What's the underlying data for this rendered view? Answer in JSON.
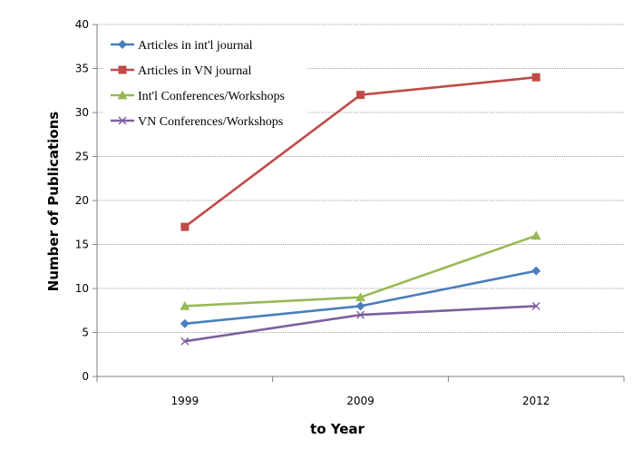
{
  "chart_data": {
    "type": "line",
    "categories": [
      "1999",
      "2009",
      "2012"
    ],
    "series": [
      {
        "name": "Articles in int'l journal",
        "values": [
          6,
          8,
          12
        ],
        "color": "#4a7ebb",
        "marker": "diamond"
      },
      {
        "name": "Articles in VN journal",
        "values": [
          17,
          32,
          34
        ],
        "color": "#be4b48",
        "marker": "square"
      },
      {
        "name": "Int'l Conferences/Workshops",
        "values": [
          8,
          9,
          16
        ],
        "color": "#98b954",
        "marker": "triangle"
      },
      {
        "name": "VN Conferences/Workshops",
        "values": [
          4,
          7,
          8
        ],
        "color": "#7d5fa0",
        "marker": "x"
      }
    ],
    "xlabel": "to Year",
    "ylabel": "Number of Publications",
    "ylim": [
      0,
      40
    ],
    "yticks": [
      0,
      5,
      10,
      15,
      20,
      25,
      30,
      35,
      40
    ],
    "grid": true,
    "legend": "top-left"
  }
}
